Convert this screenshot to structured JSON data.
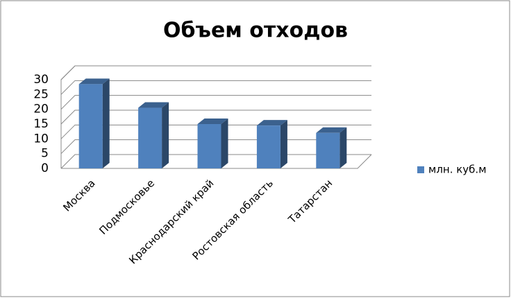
{
  "chart_data": {
    "type": "bar3d",
    "title": "Объем отходов",
    "categories": [
      "Москва",
      "Подмосковье",
      "Краснодарский край",
      "Ростовская  область",
      "Татарстан"
    ],
    "series": [
      {
        "name": "млн. куб.м",
        "color": "#4f81bd",
        "values": [
          28.5,
          20.5,
          15,
          14.5,
          12
        ]
      }
    ],
    "ylim": [
      0,
      30
    ],
    "yticks": [
      0,
      5,
      10,
      15,
      20,
      25,
      30
    ],
    "grid": true,
    "legend": "right"
  }
}
